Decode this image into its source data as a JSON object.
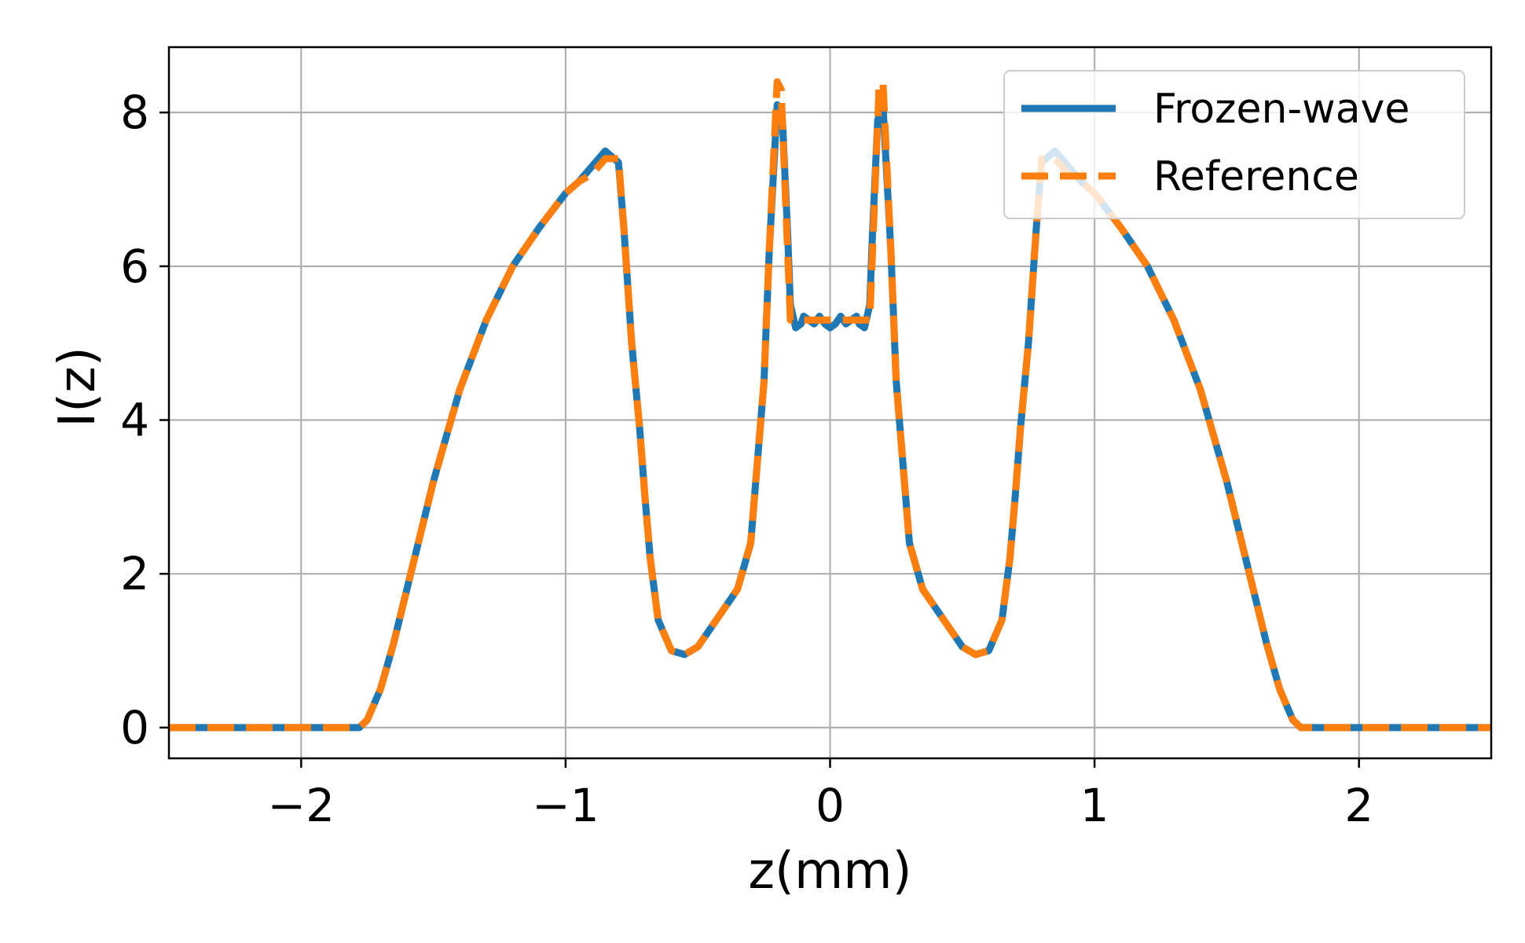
{
  "chart_data": {
    "type": "line",
    "title": "",
    "xlabel": "z(mm)",
    "ylabel": "I(z)",
    "xlim": [
      -2.5,
      2.5
    ],
    "ylim": [
      -0.4,
      8.85
    ],
    "xticks": [
      -2,
      -1,
      0,
      1,
      2
    ],
    "xtick_labels": [
      "−2",
      "−1",
      "0",
      "1",
      "2"
    ],
    "yticks": [
      0,
      2,
      4,
      6,
      8
    ],
    "ytick_labels": [
      "0",
      "2",
      "4",
      "6",
      "8"
    ],
    "grid": true,
    "legend_position": "top-right",
    "series": [
      {
        "name": "Frozen-wave",
        "color": "#1f77b4",
        "style": "solid",
        "x": [
          -2.5,
          -1.78,
          -1.75,
          -1.7,
          -1.65,
          -1.6,
          -1.5,
          -1.4,
          -1.3,
          -1.2,
          -1.1,
          -1.0,
          -0.95,
          -0.9,
          -0.85,
          -0.8,
          -0.78,
          -0.75,
          -0.72,
          -0.7,
          -0.68,
          -0.65,
          -0.6,
          -0.55,
          -0.5,
          -0.45,
          -0.4,
          -0.35,
          -0.3,
          -0.25,
          -0.23,
          -0.2,
          -0.18,
          -0.16,
          -0.15,
          -0.13,
          -0.11,
          -0.1,
          -0.08,
          -0.06,
          -0.04,
          -0.02,
          0.0,
          0.02,
          0.04,
          0.06,
          0.08,
          0.1,
          0.11,
          0.13,
          0.15,
          0.16,
          0.18,
          0.2,
          0.23,
          0.25,
          0.3,
          0.35,
          0.4,
          0.45,
          0.5,
          0.55,
          0.6,
          0.65,
          0.68,
          0.7,
          0.72,
          0.75,
          0.78,
          0.8,
          0.85,
          0.9,
          0.95,
          1.0,
          1.1,
          1.2,
          1.3,
          1.4,
          1.5,
          1.6,
          1.65,
          1.7,
          1.75,
          1.78,
          2.5
        ],
        "y": [
          0.0,
          0.0,
          0.1,
          0.5,
          1.1,
          1.8,
          3.2,
          4.4,
          5.3,
          6.0,
          6.5,
          6.95,
          7.1,
          7.3,
          7.5,
          7.35,
          6.5,
          5.0,
          3.9,
          3.0,
          2.2,
          1.4,
          1.0,
          0.95,
          1.05,
          1.3,
          1.55,
          1.8,
          2.4,
          4.5,
          6.2,
          8.1,
          7.9,
          6.4,
          5.5,
          5.2,
          5.25,
          5.35,
          5.3,
          5.25,
          5.35,
          5.25,
          5.2,
          5.25,
          5.35,
          5.25,
          5.3,
          5.35,
          5.25,
          5.2,
          5.5,
          6.4,
          7.9,
          8.1,
          6.2,
          4.5,
          2.4,
          1.8,
          1.55,
          1.3,
          1.05,
          0.95,
          1.0,
          1.4,
          2.2,
          3.0,
          3.9,
          5.0,
          6.5,
          7.35,
          7.5,
          7.3,
          7.1,
          6.95,
          6.5,
          6.0,
          5.3,
          4.4,
          3.2,
          1.8,
          1.1,
          0.5,
          0.1,
          0.0,
          0.0
        ]
      },
      {
        "name": "Reference",
        "color": "#ff7f0e",
        "style": "dashed",
        "x": [
          -2.5,
          -1.78,
          -1.75,
          -1.7,
          -1.65,
          -1.6,
          -1.5,
          -1.4,
          -1.3,
          -1.2,
          -1.1,
          -1.0,
          -0.95,
          -0.9,
          -0.85,
          -0.8,
          -0.78,
          -0.75,
          -0.72,
          -0.7,
          -0.68,
          -0.65,
          -0.6,
          -0.55,
          -0.5,
          -0.45,
          -0.4,
          -0.35,
          -0.3,
          -0.25,
          -0.23,
          -0.2,
          -0.185,
          -0.17,
          -0.15,
          -0.13,
          -0.1,
          0.0,
          0.1,
          0.13,
          0.15,
          0.17,
          0.185,
          0.2,
          0.23,
          0.25,
          0.3,
          0.35,
          0.4,
          0.45,
          0.5,
          0.55,
          0.6,
          0.65,
          0.68,
          0.7,
          0.72,
          0.75,
          0.78,
          0.8,
          0.85,
          0.9,
          0.95,
          1.0,
          1.1,
          1.2,
          1.3,
          1.4,
          1.5,
          1.6,
          1.65,
          1.7,
          1.75,
          1.78,
          2.5
        ],
        "y": [
          0.0,
          0.0,
          0.1,
          0.5,
          1.1,
          1.8,
          3.2,
          4.4,
          5.3,
          6.0,
          6.5,
          6.95,
          7.1,
          7.2,
          7.4,
          7.4,
          6.5,
          5.0,
          3.9,
          3.0,
          2.2,
          1.4,
          1.0,
          0.95,
          1.05,
          1.3,
          1.55,
          1.8,
          2.4,
          4.5,
          6.2,
          8.4,
          8.3,
          7.0,
          5.3,
          5.3,
          5.3,
          5.3,
          5.3,
          5.3,
          5.3,
          7.0,
          8.3,
          8.4,
          6.2,
          4.5,
          2.4,
          1.8,
          1.55,
          1.3,
          1.05,
          0.95,
          1.0,
          1.4,
          2.2,
          3.0,
          3.9,
          5.0,
          6.5,
          7.4,
          7.4,
          7.2,
          7.1,
          6.95,
          6.5,
          6.0,
          5.3,
          4.4,
          3.2,
          1.8,
          1.1,
          0.5,
          0.1,
          0.0,
          0.0
        ]
      }
    ]
  }
}
